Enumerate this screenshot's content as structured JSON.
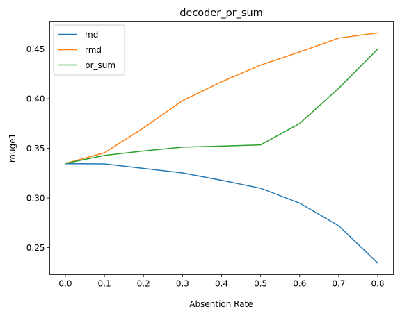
{
  "chart_data": {
    "type": "line",
    "title": "decoder_pr_sum",
    "xlabel": "Absention Rate",
    "ylabel": "rouge1",
    "x": [
      0.0,
      0.1,
      0.2,
      0.3,
      0.4,
      0.5,
      0.6,
      0.7,
      0.8
    ],
    "xticks": [
      "0.0",
      "0.1",
      "0.2",
      "0.3",
      "0.4",
      "0.5",
      "0.6",
      "0.7",
      "0.8"
    ],
    "yticks": [
      0.25,
      0.3,
      0.35,
      0.4,
      0.45
    ],
    "ytick_labels": [
      "0.25",
      "0.30",
      "0.35",
      "0.40",
      "0.45"
    ],
    "xlim": [
      -0.04,
      0.84
    ],
    "ylim": [
      0.2228,
      0.478
    ],
    "grid": false,
    "legend": "top-left",
    "series": [
      {
        "name": "md",
        "color": "#1f77b4",
        "values": [
          0.3345,
          0.3343,
          0.3298,
          0.3252,
          0.3178,
          0.3098,
          0.2948,
          0.272,
          0.2345
        ]
      },
      {
        "name": "rmd",
        "color": "#ff7f0e",
        "values": [
          0.3348,
          0.3455,
          0.3705,
          0.398,
          0.417,
          0.4338,
          0.447,
          0.461,
          0.4662
        ]
      },
      {
        "name": "pr_sum",
        "color": "#2ca02c",
        "values": [
          0.3348,
          0.3428,
          0.3473,
          0.3512,
          0.3522,
          0.3535,
          0.375,
          0.4105,
          0.45
        ]
      }
    ]
  }
}
